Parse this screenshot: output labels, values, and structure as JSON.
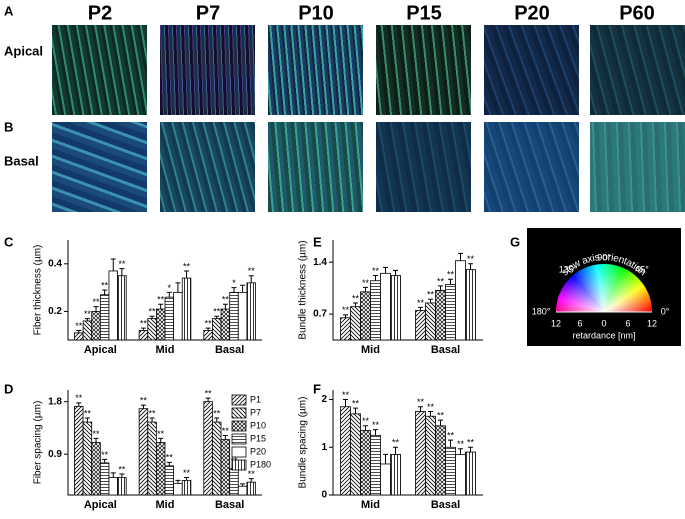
{
  "panel_labels": {
    "a": "A",
    "b": "B",
    "c": "C",
    "d": "D",
    "e": "E",
    "f": "F",
    "g": "G"
  },
  "images": {
    "columns": [
      "P2",
      "P7",
      "P10",
      "P15",
      "P20",
      "P60"
    ],
    "rows": [
      "Apical",
      "Basal"
    ]
  },
  "chart_data": [
    {
      "type": "bar",
      "ylabel": "Fiber thickness (µm)",
      "categories": [
        "Apical",
        "Mid",
        "Basal"
      ],
      "ylim": [
        0.08,
        0.5
      ],
      "yticks": [
        0.2,
        0.4
      ],
      "series": [
        {
          "pattern": "forward",
          "values": [
            0.11,
            0.12,
            0.12
          ],
          "errors": [
            0.01,
            0.01,
            0.01
          ],
          "significance": [
            "**",
            "**",
            "**"
          ]
        },
        {
          "pattern": "back",
          "values": [
            0.16,
            0.17,
            0.17
          ],
          "errors": [
            0.01,
            0.01,
            0.01
          ],
          "significance": [
            "**",
            "**",
            "**"
          ]
        },
        {
          "pattern": "cross",
          "values": [
            0.2,
            0.21,
            0.21
          ],
          "errors": [
            0.02,
            0.02,
            0.02
          ],
          "significance": [
            "**",
            "**",
            "**"
          ]
        },
        {
          "pattern": "horiz",
          "values": [
            0.27,
            0.26,
            0.28
          ],
          "errors": [
            0.02,
            0.02,
            0.02
          ],
          "significance": [
            "**",
            "*",
            "*"
          ]
        },
        {
          "pattern": "empty",
          "values": [
            0.37,
            0.28,
            0.28
          ],
          "errors": [
            0.05,
            0.04,
            0.03
          ],
          "significance": [
            null,
            null,
            null
          ]
        },
        {
          "pattern": "vert",
          "values": [
            0.35,
            0.34,
            0.32
          ],
          "errors": [
            0.03,
            0.03,
            0.03
          ],
          "significance": [
            "**",
            "**",
            "**"
          ]
        }
      ]
    },
    {
      "type": "bar",
      "ylabel": "Fiber spacing (µm)",
      "categories": [
        "Apical",
        "Mid",
        "Basal"
      ],
      "ylim": [
        0.2,
        2.0
      ],
      "yticks": [
        0.9,
        1.8
      ],
      "series": [
        {
          "name": "P1",
          "pattern": "forward",
          "values": [
            1.72,
            1.68,
            1.8
          ],
          "errors": [
            0.06,
            0.06,
            0.06
          ],
          "significance": [
            "**",
            "**",
            "**"
          ]
        },
        {
          "name": "P7",
          "pattern": "back",
          "values": [
            1.45,
            1.45,
            1.45
          ],
          "errors": [
            0.07,
            0.07,
            0.07
          ],
          "significance": [
            "**",
            "**",
            "**"
          ]
        },
        {
          "name": "P10",
          "pattern": "cross",
          "values": [
            1.1,
            1.1,
            1.15
          ],
          "errors": [
            0.07,
            0.07,
            0.07
          ],
          "significance": [
            "**",
            "**",
            "**"
          ]
        },
        {
          "name": "P15",
          "pattern": "horiz",
          "values": [
            0.75,
            0.7,
            0.65
          ],
          "errors": [
            0.06,
            0.06,
            0.06
          ],
          "significance": [
            "**",
            "**",
            "**"
          ]
        },
        {
          "name": "P20",
          "pattern": "empty",
          "values": [
            0.5,
            0.4,
            0.35
          ],
          "errors": [
            0.08,
            0.05,
            0.04
          ],
          "significance": [
            null,
            null,
            null
          ]
        },
        {
          "name": "P180",
          "pattern": "vert",
          "values": [
            0.5,
            0.45,
            0.42
          ],
          "errors": [
            0.06,
            0.05,
            0.06
          ],
          "significance": [
            "**",
            "**",
            "**"
          ]
        }
      ]
    },
    {
      "type": "bar",
      "ylabel": "Bundle thickness (µm)",
      "categories": [
        "Mid",
        "Basal"
      ],
      "ylim": [
        0.35,
        1.7
      ],
      "yticks": [
        0.7,
        1.4
      ],
      "series": [
        {
          "pattern": "forward",
          "values": [
            0.65,
            0.75
          ],
          "errors": [
            0.04,
            0.04
          ],
          "significance": [
            "**",
            "**"
          ]
        },
        {
          "pattern": "back",
          "values": [
            0.8,
            0.85
          ],
          "errors": [
            0.05,
            0.05
          ],
          "significance": [
            "**",
            "**"
          ]
        },
        {
          "pattern": "cross",
          "values": [
            1.0,
            1.02
          ],
          "errors": [
            0.06,
            0.06
          ],
          "significance": [
            "**",
            "**"
          ]
        },
        {
          "pattern": "horiz",
          "values": [
            1.15,
            1.1
          ],
          "errors": [
            0.07,
            0.07
          ],
          "significance": [
            "**",
            "**"
          ]
        },
        {
          "pattern": "empty",
          "values": [
            1.25,
            1.42
          ],
          "errors": [
            0.08,
            0.1
          ],
          "significance": [
            null,
            null
          ]
        },
        {
          "pattern": "vert",
          "values": [
            1.22,
            1.3
          ],
          "errors": [
            0.07,
            0.08
          ],
          "significance": [
            null,
            "**"
          ]
        }
      ]
    },
    {
      "type": "bar",
      "ylabel": "Bundle spacing (µm)",
      "categories": [
        "Mid",
        "Basal"
      ],
      "ylim": [
        0,
        2.2
      ],
      "yticks": [
        0,
        1,
        2
      ],
      "series": [
        {
          "pattern": "forward",
          "values": [
            1.85,
            1.75
          ],
          "errors": [
            0.15,
            0.1
          ],
          "significance": [
            "**",
            "**"
          ]
        },
        {
          "pattern": "back",
          "values": [
            1.7,
            1.65
          ],
          "errors": [
            0.12,
            0.1
          ],
          "significance": [
            "**",
            "**"
          ]
        },
        {
          "pattern": "cross",
          "values": [
            1.35,
            1.45
          ],
          "errors": [
            0.1,
            0.12
          ],
          "significance": [
            "**",
            "**"
          ]
        },
        {
          "pattern": "horiz",
          "values": [
            1.25,
            1.0
          ],
          "errors": [
            0.12,
            0.15
          ],
          "significance": [
            "**",
            "**"
          ]
        },
        {
          "pattern": "empty",
          "values": [
            0.65,
            0.85
          ],
          "errors": [
            0.2,
            0.12
          ],
          "significance": [
            null,
            "**"
          ]
        },
        {
          "pattern": "vert",
          "values": [
            0.85,
            0.9
          ],
          "errors": [
            0.15,
            0.1
          ],
          "significance": [
            "**",
            "**"
          ]
        }
      ]
    }
  ],
  "panel_g": {
    "title": "slow axis orientation",
    "angles": [
      "90°",
      "135°",
      "45°",
      "180°",
      "0°"
    ],
    "scale": [
      "12",
      "6",
      "0",
      "6",
      "12"
    ],
    "xlabel": "retardance [nm]"
  }
}
